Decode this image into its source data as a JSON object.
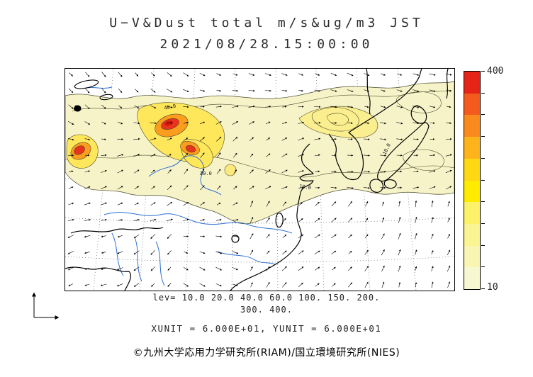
{
  "title": "U−V&Dust total m/s&ug/m3 JST",
  "datetime": "2021/08/28.15:00:00",
  "colorbar": {
    "max_label": "400",
    "min_label": "10",
    "colors_top_to_bottom": [
      "#E32417",
      "#F25B1D",
      "#F98A1D",
      "#FDB31B",
      "#FED813",
      "#FFEB00",
      "#FDF169",
      "#FBF493",
      "#F9F6B4",
      "#F7F7D2"
    ]
  },
  "legend": {
    "lev_line1": "lev= 10.0 20.0 40.0 60.0 100. 150. 200.",
    "lev_line2": "300. 400.",
    "units": "XUNIT = 6.000E+01, YUNIT = 6.000E+01"
  },
  "credit": "©九州大学応用力学研究所(RIAM)/国立環境研究所(NIES)",
  "map": {
    "contour_labels": [
      "40.0",
      "20.0",
      "10.0",
      "10.0"
    ],
    "colors": {
      "pale": "#F7F3C9",
      "light_yellow": "#FAEE8E",
      "yellow": "#FFE75C",
      "orange": "#FB9E1E",
      "red": "#E8341C",
      "deep_red": "#D61A0C",
      "river": "#2D6FD2",
      "coast": "#000000"
    }
  },
  "wind": {
    "cols": 24,
    "rows": 14,
    "len": 9
  }
}
